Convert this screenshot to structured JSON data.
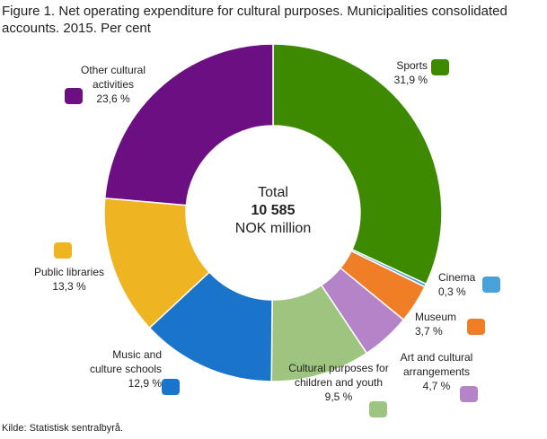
{
  "chart_data": {
    "type": "donut",
    "title": "Figure 1. Net operating expenditure for cultural purposes. Municipalities consolidated accounts. 2015. Per cent",
    "center_text": [
      "Total",
      "10 585",
      "NOK million"
    ],
    "categories": [
      "Sports",
      "Cinema",
      "Museum",
      "Art and cultural arrangements",
      "Cultural purposes for children and youth",
      "Music and culture schools",
      "Public libraries",
      "Other cultural activities"
    ],
    "values": [
      31.9,
      0.3,
      3.7,
      4.7,
      9.5,
      12.9,
      13.3,
      23.6
    ],
    "value_labels": [
      "31,9 %",
      "0,3 %",
      "3,7 %",
      "4,7 %",
      "9,5 %",
      "12,9 %",
      "13,3 %",
      "23,6 %"
    ],
    "colors": [
      "#3d8a00",
      "#4aa0d8",
      "#f07e26",
      "#b583c8",
      "#9dc57f",
      "#1a74c9",
      "#eeb422",
      "#6b0f82"
    ],
    "source": "Kilde: Statistisk sentralbyrå."
  }
}
